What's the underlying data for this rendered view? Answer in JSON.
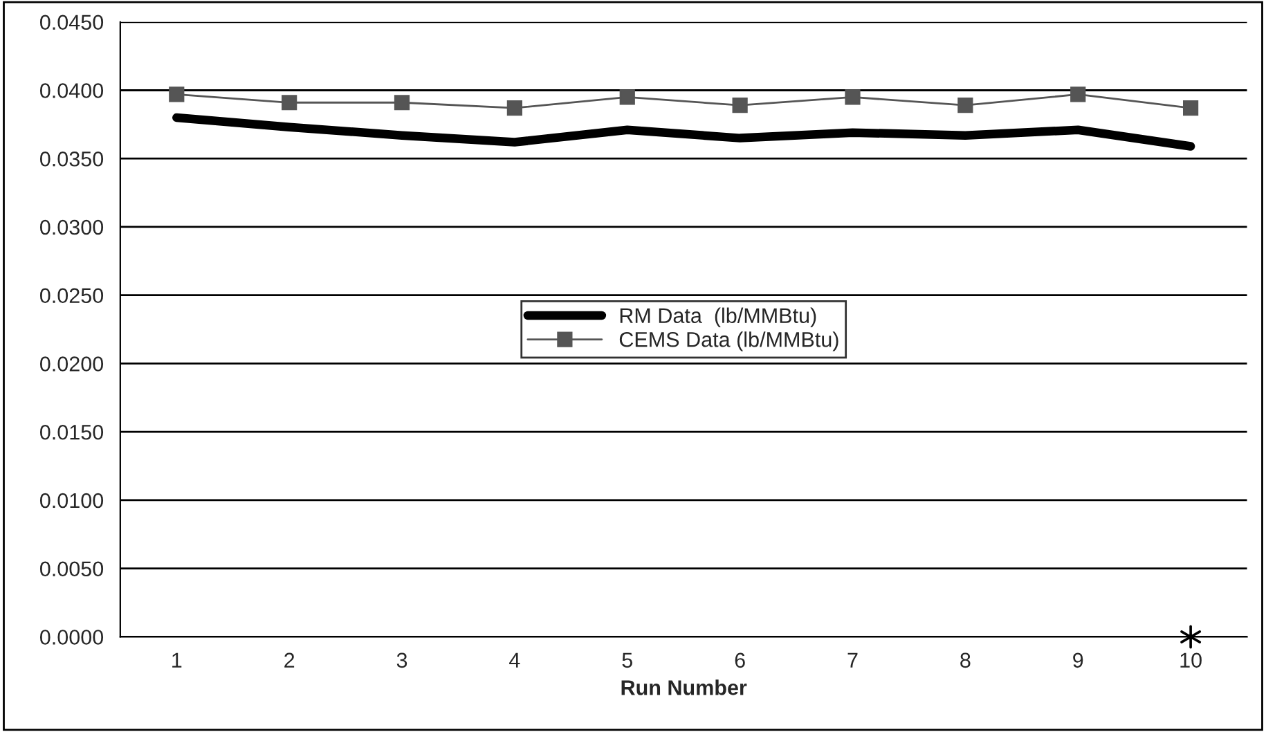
{
  "chart_data": {
    "type": "line",
    "xlabel": "Run Number",
    "categories": [
      "1",
      "2",
      "3",
      "4",
      "5",
      "6",
      "7",
      "8",
      "9",
      "10"
    ],
    "series": [
      {
        "name": "RM Data  (lb/MMBtu)",
        "color": "#000000",
        "marker": "none",
        "values": [
          0.038,
          0.0373,
          0.0367,
          0.0362,
          0.0371,
          0.0365,
          0.0369,
          0.0367,
          0.0371,
          0.0359
        ]
      },
      {
        "name": "CEMS Data (lb/MMBtu)",
        "color": "#555555",
        "marker": "square",
        "values": [
          0.0397,
          0.0391,
          0.0391,
          0.0387,
          0.0395,
          0.0389,
          0.0395,
          0.0389,
          0.0397,
          0.0387
        ]
      },
      {
        "type": "scatter",
        "color": "#000000",
        "marker": "cross",
        "values": [
          null,
          null,
          null,
          null,
          null,
          null,
          null,
          null,
          null,
          0.0
        ]
      }
    ],
    "ylim": [
      0,
      0.045
    ],
    "yticks": [
      {
        "value": 0,
        "label": "0.0000"
      },
      {
        "value": 0.005,
        "label": "0.0050"
      },
      {
        "value": 0.01,
        "label": "0.0100"
      },
      {
        "value": 0.015,
        "label": "0.0150"
      },
      {
        "value": 0.02,
        "label": "0.0200"
      },
      {
        "value": 0.025,
        "label": "0.0250"
      },
      {
        "value": 0.03,
        "label": "0.0300"
      },
      {
        "value": 0.035,
        "label": "0.0350"
      },
      {
        "value": 0.04,
        "label": "0.0400"
      },
      {
        "value": 0.045,
        "label": "0.0450"
      }
    ],
    "grid": "y",
    "legend": "center"
  }
}
